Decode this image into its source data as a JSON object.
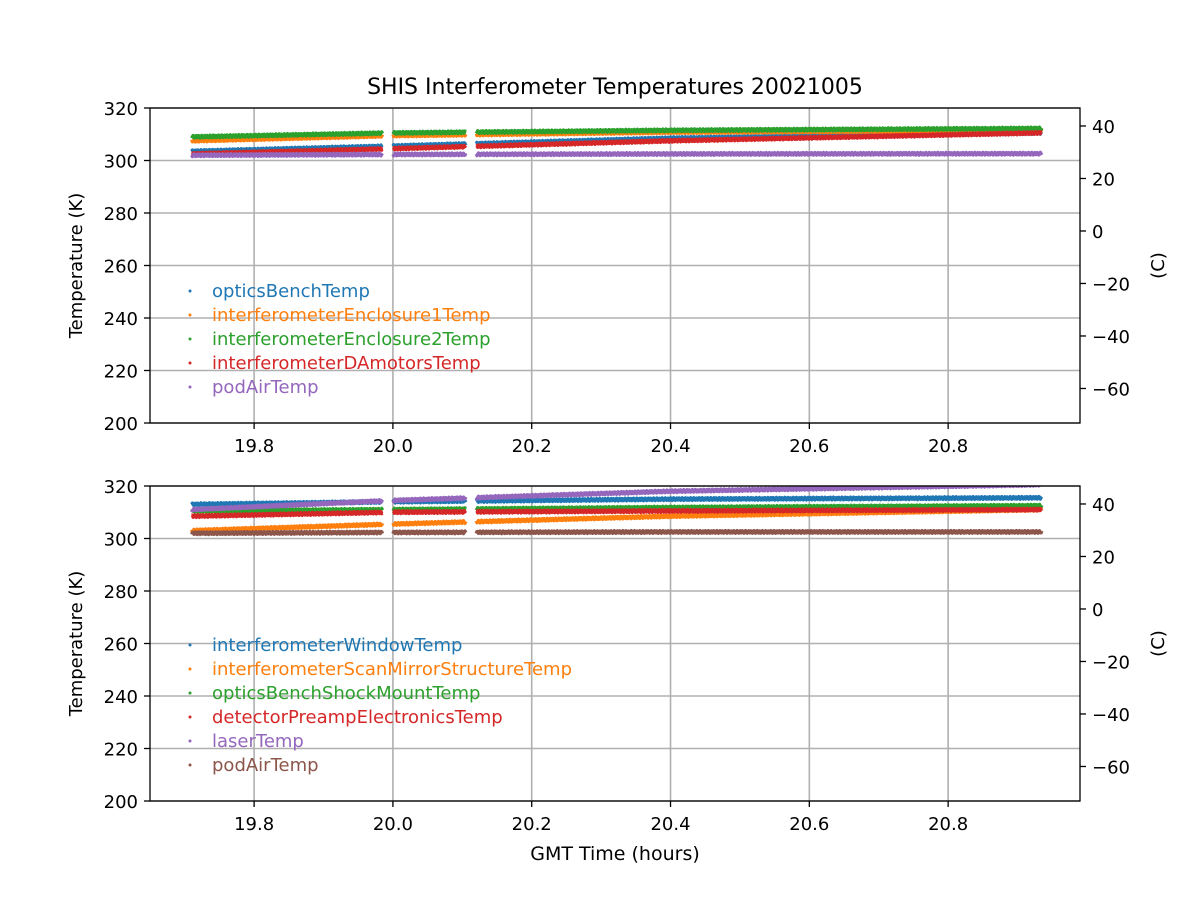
{
  "figure": {
    "title": "SHIS Interferometer Temperatures 20021005",
    "xlabel": "GMT Time (hours)"
  },
  "chart_data": [
    {
      "type": "scatter",
      "xlim": [
        19.65,
        20.99
      ],
      "ylim": [
        200,
        320
      ],
      "x_ticks": [
        19.8,
        20.0,
        20.2,
        20.4,
        20.6,
        20.8
      ],
      "x_tick_labels": [
        "19.8",
        "20.0",
        "20.2",
        "20.4",
        "20.6",
        "20.8"
      ],
      "y_ticks": [
        200,
        220,
        240,
        260,
        280,
        300,
        320
      ],
      "ylabel": "Temperature (K)",
      "y2label": "(C)",
      "y2_ticks": [
        40,
        20,
        0,
        -20,
        -40,
        -60
      ],
      "y2_tick_labels": [
        "40",
        "20",
        "0",
        "−20",
        "−40",
        "−60"
      ],
      "grid": true,
      "legend_position": "lower-left",
      "x_segments": [
        [
          19.71,
          19.985
        ],
        [
          20.0,
          20.105
        ],
        [
          20.12,
          20.935
        ]
      ],
      "series": [
        {
          "name": "opticsBenchTemp",
          "color": "#1f77b4",
          "x": [
            19.71,
            20.0,
            20.4,
            20.93
          ],
          "y": [
            303.5,
            305.5,
            308.5,
            310.5
          ]
        },
        {
          "name": "interferometerEnclosure1Temp",
          "color": "#ff7f0e",
          "x": [
            19.71,
            20.0,
            20.4,
            20.93
          ],
          "y": [
            307.5,
            309.5,
            310.8,
            311.5
          ]
        },
        {
          "name": "interferometerEnclosure2Temp",
          "color": "#2ca02c",
          "x": [
            19.71,
            20.0,
            20.4,
            20.93
          ],
          "y": [
            309.0,
            310.5,
            311.5,
            312.2
          ]
        },
        {
          "name": "interferometerDAmotorsTemp",
          "color": "#d62728",
          "x": [
            19.71,
            20.0,
            20.4,
            20.93
          ],
          "y": [
            302.5,
            304.5,
            307.5,
            310.5
          ]
        },
        {
          "name": "podAirTemp",
          "color": "#9467bd",
          "x": [
            19.71,
            20.0,
            20.4,
            20.93
          ],
          "y": [
            302.0,
            302.3,
            302.5,
            302.6
          ]
        }
      ]
    },
    {
      "type": "scatter",
      "xlim": [
        19.65,
        20.99
      ],
      "ylim": [
        200,
        320
      ],
      "x_ticks": [
        19.8,
        20.0,
        20.2,
        20.4,
        20.6,
        20.8
      ],
      "x_tick_labels": [
        "19.8",
        "20.0",
        "20.2",
        "20.4",
        "20.6",
        "20.8"
      ],
      "y_ticks": [
        200,
        220,
        240,
        260,
        280,
        300,
        320
      ],
      "ylabel": "Temperature (K)",
      "y2label": "(C)",
      "y2_ticks": [
        40,
        20,
        0,
        -20,
        -40,
        -60
      ],
      "y2_tick_labels": [
        "40",
        "20",
        "0",
        "−20",
        "−40",
        "−60"
      ],
      "grid": true,
      "legend_position": "lower-left",
      "x_segments": [
        [
          19.71,
          19.985
        ],
        [
          20.0,
          20.105
        ],
        [
          20.12,
          20.935
        ]
      ],
      "series": [
        {
          "name": "interferometerWindowTemp",
          "color": "#1f77b4",
          "x": [
            19.71,
            20.0,
            20.4,
            20.93
          ],
          "y": [
            313.0,
            314.0,
            315.0,
            315.5
          ]
        },
        {
          "name": "interferometerScanMirrorStructureTemp",
          "color": "#ff7f0e",
          "x": [
            19.71,
            20.0,
            20.4,
            20.93
          ],
          "y": [
            303.0,
            305.5,
            308.5,
            311.0
          ]
        },
        {
          "name": "opticsBenchShockMountTemp",
          "color": "#2ca02c",
          "x": [
            19.71,
            20.0,
            20.4,
            20.93
          ],
          "y": [
            310.5,
            311.0,
            311.8,
            312.5
          ]
        },
        {
          "name": "detectorPreampElectronicsTemp",
          "color": "#d62728",
          "x": [
            19.71,
            20.0,
            20.4,
            20.93
          ],
          "y": [
            308.5,
            310.0,
            310.5,
            311.0
          ]
        },
        {
          "name": "laserTemp",
          "color": "#9467bd",
          "x": [
            19.71,
            20.0,
            20.4,
            20.93
          ],
          "y": [
            311.0,
            314.5,
            318.0,
            320.5
          ]
        },
        {
          "name": "podAirTemp",
          "color": "#8c564b",
          "x": [
            19.71,
            20.0,
            20.4,
            20.93
          ],
          "y": [
            302.0,
            302.3,
            302.5,
            302.5
          ]
        }
      ]
    }
  ]
}
